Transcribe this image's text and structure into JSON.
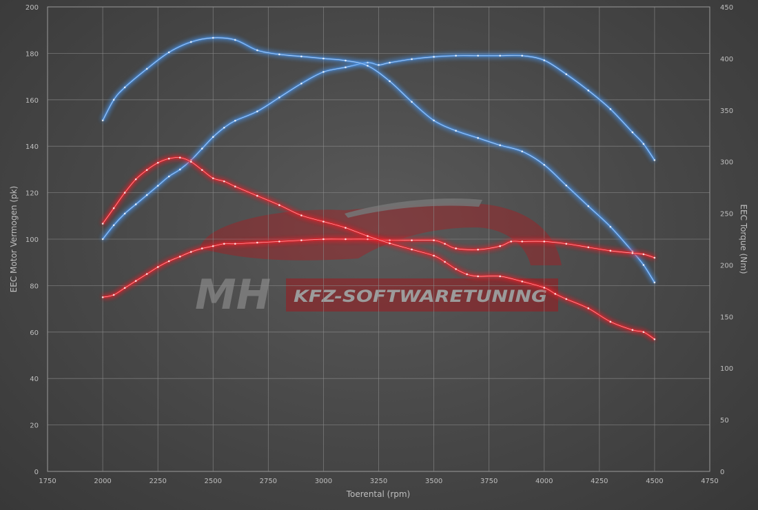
{
  "chart_data": {
    "type": "line",
    "title": "",
    "xlabel": "Toerental (rpm)",
    "ylabel": "EEC Motor Vermogen (pk)",
    "ylabel_right": "EEC Torque (Nm)",
    "xlim": [
      1750,
      4750
    ],
    "ylim": [
      0,
      200
    ],
    "ylim_right": [
      0,
      450
    ],
    "x_ticks": [
      1750,
      2000,
      2250,
      2500,
      2750,
      3000,
      3250,
      3500,
      3750,
      4000,
      4250,
      4500,
      4750
    ],
    "y_ticks": [
      0,
      20,
      40,
      60,
      80,
      100,
      120,
      140,
      160,
      180,
      200
    ],
    "y_ticks_right": [
      0,
      50,
      100,
      150,
      200,
      250,
      300,
      350,
      400,
      450
    ],
    "grid": true,
    "colors": {
      "tuned": "#4a90e2",
      "stock": "#e8202a"
    },
    "series": [
      {
        "axis": "left",
        "color": "#4a90e2",
        "x": [
          2000,
          2050,
          2100,
          2150,
          2200,
          2250,
          2300,
          2350,
          2400,
          2450,
          2500,
          2550,
          2600,
          2700,
          2800,
          2900,
          3000,
          3100,
          3200,
          3250,
          3300,
          3400,
          3500,
          3600,
          3700,
          3800,
          3900,
          4000,
          4100,
          4200,
          4300,
          4400,
          4450,
          4500
        ],
        "values": [
          100,
          106,
          111,
          115,
          119,
          123,
          127,
          130,
          134,
          139,
          144,
          148,
          151,
          155,
          161,
          167,
          172,
          174,
          176,
          175,
          176,
          177.5,
          178.5,
          179,
          179,
          179,
          179,
          177,
          171,
          164,
          156,
          146,
          141,
          134
        ]
      },
      {
        "axis": "right",
        "color": "#4a90e2",
        "x": [
          2000,
          2050,
          2100,
          2200,
          2300,
          2400,
          2500,
          2600,
          2700,
          2800,
          2900,
          3000,
          3100,
          3200,
          3300,
          3400,
          3500,
          3600,
          3700,
          3800,
          3900,
          4000,
          4100,
          4200,
          4300,
          4400,
          4450,
          4500
        ],
        "values": [
          340,
          360,
          372,
          390,
          406,
          416,
          420,
          418,
          408,
          404,
          402,
          400,
          398,
          393,
          378,
          358,
          340,
          330,
          323,
          316,
          310,
          297,
          277,
          257,
          237,
          213,
          200,
          183
        ]
      },
      {
        "axis": "left",
        "color": "#e8202a",
        "x": [
          2000,
          2050,
          2100,
          2150,
          2200,
          2250,
          2300,
          2350,
          2400,
          2450,
          2500,
          2550,
          2600,
          2700,
          2800,
          2900,
          3000,
          3100,
          3200,
          3300,
          3400,
          3500,
          3550,
          3600,
          3700,
          3800,
          3850,
          3900,
          4000,
          4100,
          4200,
          4300,
          4400,
          4450,
          4500
        ],
        "values": [
          75,
          76,
          79,
          82,
          85,
          88,
          90.5,
          92.5,
          94.5,
          96,
          97,
          98,
          98,
          98.5,
          99,
          99.5,
          100,
          100,
          100,
          99.5,
          99.5,
          99.5,
          98,
          96,
          95.5,
          97,
          99,
          99,
          99,
          98,
          96.5,
          95,
          94,
          93.5,
          92
        ]
      },
      {
        "axis": "right",
        "color": "#e8202a",
        "x": [
          2000,
          2050,
          2100,
          2150,
          2200,
          2250,
          2300,
          2350,
          2400,
          2450,
          2500,
          2550,
          2600,
          2700,
          2800,
          2900,
          3000,
          3100,
          3200,
          3300,
          3400,
          3500,
          3550,
          3600,
          3650,
          3700,
          3800,
          3900,
          4000,
          4050,
          4100,
          4200,
          4300,
          4400,
          4450,
          4500
        ],
        "values": [
          240,
          255,
          270,
          283,
          292,
          299,
          303,
          304,
          300,
          292,
          284,
          281,
          276,
          267,
          258,
          248,
          242,
          236,
          228,
          221,
          215,
          209,
          203,
          196,
          191,
          189,
          189,
          184,
          178,
          172,
          167,
          158,
          145,
          137,
          135,
          128
        ]
      }
    ]
  },
  "logo": {
    "brand": "MH",
    "text": "KFZ-SOFTWARETUNING"
  }
}
